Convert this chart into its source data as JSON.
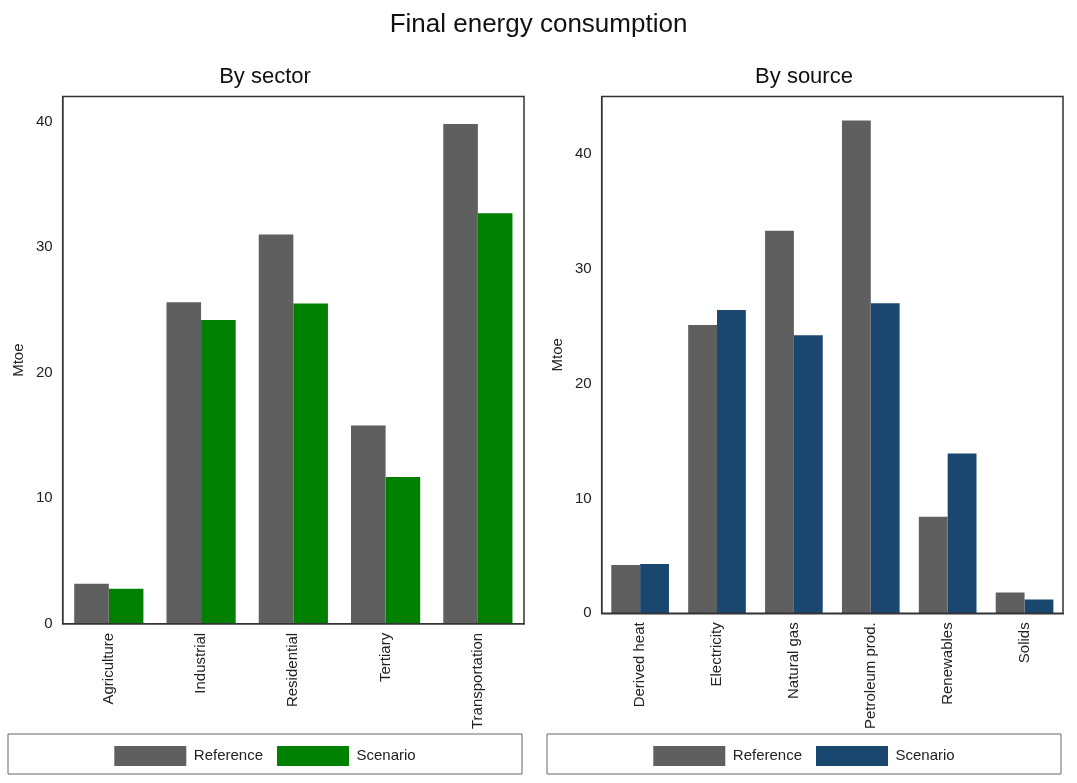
{
  "chart_data": [
    {
      "type": "other",
      "title": "Final energy consumption"
    },
    {
      "type": "bar",
      "title": "By sector",
      "ylabel": "Mtoe",
      "categories": [
        "Agriculture",
        "Industrial",
        "Residential",
        "Tertiary",
        "Transportation"
      ],
      "series": [
        {
          "name": "Reference",
          "color": "#5f5f5f",
          "values": [
            3.2,
            25.6,
            31.0,
            15.8,
            39.8
          ]
        },
        {
          "name": "Scenario",
          "color": "#008000",
          "values": [
            2.8,
            24.2,
            25.5,
            11.7,
            32.7
          ]
        }
      ],
      "ylim": [
        0,
        42
      ],
      "yticks": [
        0,
        10,
        20,
        30,
        40
      ],
      "grid": false,
      "legend": "bottom"
    },
    {
      "type": "bar",
      "title": "By source",
      "ylabel": "Mtoe",
      "categories": [
        "Derived heat",
        "Electricity",
        "Natural gas",
        "Petroleum prod.",
        "Renewables",
        "Solids"
      ],
      "series": [
        {
          "name": "Reference",
          "color": "#5f5f5f",
          "values": [
            4.2,
            25.1,
            33.3,
            42.9,
            8.4,
            1.8
          ]
        },
        {
          "name": "Scenario",
          "color": "#1a476f",
          "values": [
            4.3,
            26.4,
            24.2,
            27.0,
            13.9,
            1.2
          ]
        }
      ],
      "ylim": [
        0,
        45
      ],
      "yticks": [
        0,
        10,
        20,
        30,
        40
      ],
      "grid": false,
      "legend": "bottom"
    }
  ]
}
